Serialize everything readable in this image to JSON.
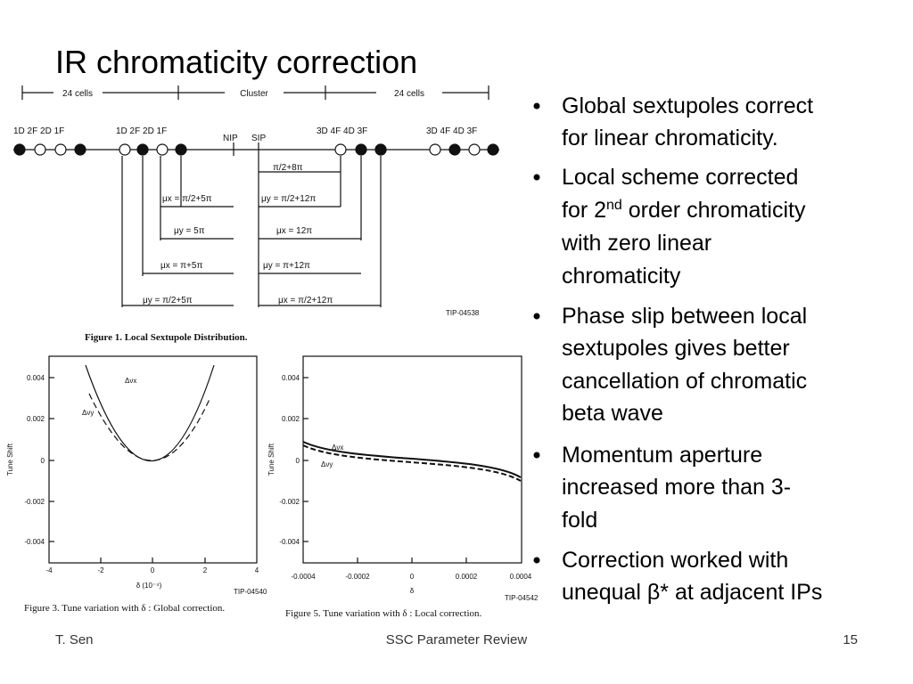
{
  "title": "IR chromaticity correction",
  "bullets": [
    [
      "Global sextupoles correct",
      "for linear chromaticity."
    ],
    [
      "Local scheme corrected",
      "for 2",
      "nd",
      " order chromaticity",
      "with zero linear",
      "chromaticity"
    ],
    [
      "Phase slip between local",
      "sextupoles gives better",
      "cancellation of chromatic",
      "beta wave"
    ],
    [
      "Momentum aperture",
      "increased more than 3-",
      "fold"
    ],
    [
      "Correction worked with",
      "unequal β* at adjacent IPs"
    ]
  ],
  "figure1": {
    "spans": [
      "24 cells",
      "Cluster",
      "24 cells"
    ],
    "groups": [
      "1D 2F 2D 1F",
      "1D 2F 2D 1F",
      "NIP",
      "SIP",
      "3D 4F 4D 3F",
      "3D 4F 4D 3F"
    ],
    "phases": [
      "π/2+8π",
      "μx = π/2+5π",
      "μy = π/2+12π",
      "μy = 5π",
      "μx = 12π",
      "μx = π+5π",
      "μy = π+12π",
      "μy = π/2+5π",
      "μx = π/2+12π"
    ],
    "id": "TIP-04538",
    "caption": "Figure 1.  Local Sextupole Distribution."
  },
  "figure3": {
    "yticks": [
      "0.004",
      "0.002",
      "0",
      "-0.002",
      "-0.004"
    ],
    "xticks": [
      "-4",
      "-2",
      "0",
      "2",
      "4"
    ],
    "ylabel": "Tune Shift",
    "xlabel": "δ (10⁻⁴)",
    "curves": [
      "Δνx",
      "Δνy"
    ],
    "id": "TIP-04540",
    "caption": "Figure 3.  Tune variation with δ : Global correction."
  },
  "figure5": {
    "yticks": [
      "0.004",
      "0.002",
      "0",
      "-0.002",
      "-0.004"
    ],
    "xticks": [
      "-0.0004",
      "-0.0002",
      "0",
      "0.0002",
      "0.0004"
    ],
    "ylabel": "Tune Shift",
    "xlabel": "δ",
    "curves": [
      "Δνx",
      "Δνy"
    ],
    "id": "TIP-04542",
    "caption": "Figure 5.  Tune variation with δ : Local correction."
  },
  "footer": {
    "left": "T. Sen",
    "center": "SSC Parameter Review",
    "right": "15"
  }
}
